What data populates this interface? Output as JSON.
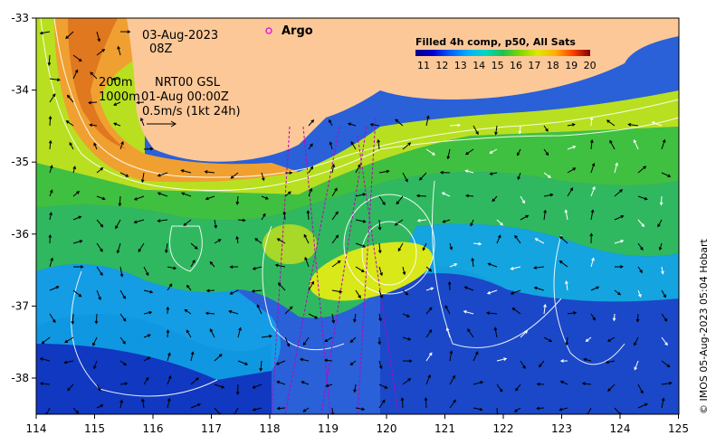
{
  "map": {
    "date": "03-Aug-2023",
    "time": "08Z",
    "depth_line_1": "200m",
    "depth_line_2": "1000m",
    "source_1": "NRT00 GSL",
    "source_2": "01-Aug 00:00Z",
    "scale_label": "0.5m/s (1kt 24h)",
    "argo_label": "Argo",
    "credit": "© IMOS 05-Aug-2023 05:04 Hobart",
    "colorbar": {
      "title": "Filled 4h comp, p50, All Sats",
      "ticks": [
        "11",
        "12",
        "13",
        "14",
        "15",
        "16",
        "17",
        "18",
        "19",
        "20"
      ],
      "colors": [
        "#00008b",
        "#0000d0",
        "#0050ff",
        "#00a0ff",
        "#00d8d8",
        "#20c060",
        "#60d000",
        "#c0e000",
        "#ffe000",
        "#ffa000",
        "#ff5000",
        "#d00000",
        "#800000"
      ]
    },
    "x_ticks": [
      "114",
      "115",
      "116",
      "117",
      "118",
      "119",
      "120",
      "121",
      "122",
      "123",
      "124",
      "125"
    ],
    "y_ticks": [
      "-33",
      "-34",
      "-35",
      "-36",
      "-37",
      "-38"
    ],
    "colors": {
      "land": "#fcc898",
      "argo_marker": "#e020e0",
      "swath_lines": "#c000c0",
      "contours": "#ffffff"
    }
  }
}
